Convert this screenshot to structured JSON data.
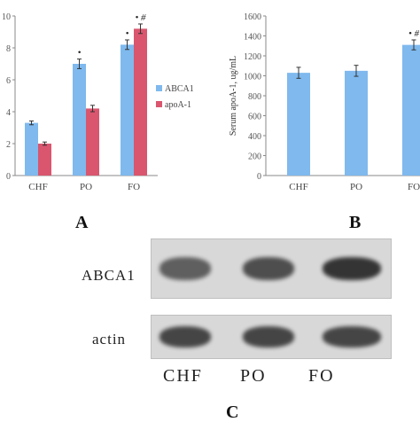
{
  "panels": {
    "a": {
      "letter": "A"
    },
    "b": {
      "letter": "B"
    },
    "c": {
      "letter": "C"
    }
  },
  "chart_data": [
    {
      "type": "bar",
      "categories": [
        "CHF",
        "PO",
        "FO"
      ],
      "ylim": [
        0,
        10
      ],
      "yticks": [
        "0",
        "2",
        "4",
        "6",
        "8",
        "10"
      ],
      "ytick_values": [
        0,
        2,
        4,
        6,
        8,
        10
      ],
      "series": [
        {
          "name": "ABCA1",
          "color": "#7fb9ee",
          "values": [
            3.3,
            7.0,
            8.2
          ],
          "errors": [
            0.12,
            0.3,
            0.3
          ]
        },
        {
          "name": "apoA-1",
          "color": "#d9566e",
          "values": [
            2.0,
            4.2,
            9.2
          ],
          "errors": [
            0.1,
            0.2,
            0.3
          ]
        }
      ],
      "annotations": [
        {
          "category": "PO",
          "series": "ABCA1",
          "text": "•"
        },
        {
          "category": "FO",
          "series": "ABCA1",
          "text": "•"
        },
        {
          "category": "FO",
          "series": "apoA-1",
          "text": "• #"
        }
      ],
      "legend": "right",
      "grid": false
    },
    {
      "type": "bar",
      "categories": [
        "CHF",
        "PO",
        "FO"
      ],
      "ylim": [
        0,
        1600
      ],
      "yticks": [
        "0",
        "200",
        "400",
        "600",
        "800",
        "1000",
        "1200",
        "1400",
        "1600"
      ],
      "ytick_values": [
        0,
        200,
        400,
        600,
        800,
        1000,
        1200,
        1400,
        1600
      ],
      "ylabel": "Serum apoA-1, ug/mL",
      "series": [
        {
          "color": "#7fb9ee",
          "values": [
            1030,
            1050,
            1310
          ],
          "errors": [
            55,
            55,
            50
          ]
        }
      ],
      "annotations": [
        {
          "category": "FO",
          "text": "• #"
        }
      ],
      "grid": false
    }
  ],
  "blot": {
    "rows": [
      {
        "label": "ABCA1",
        "intensities": [
          0.7,
          0.8,
          0.95
        ]
      },
      {
        "label": "actin",
        "intensities": [
          0.85,
          0.85,
          0.85
        ]
      }
    ],
    "lanes": [
      "CHF",
      "PO",
      "FO"
    ],
    "band_color": "#2c2c2c"
  }
}
